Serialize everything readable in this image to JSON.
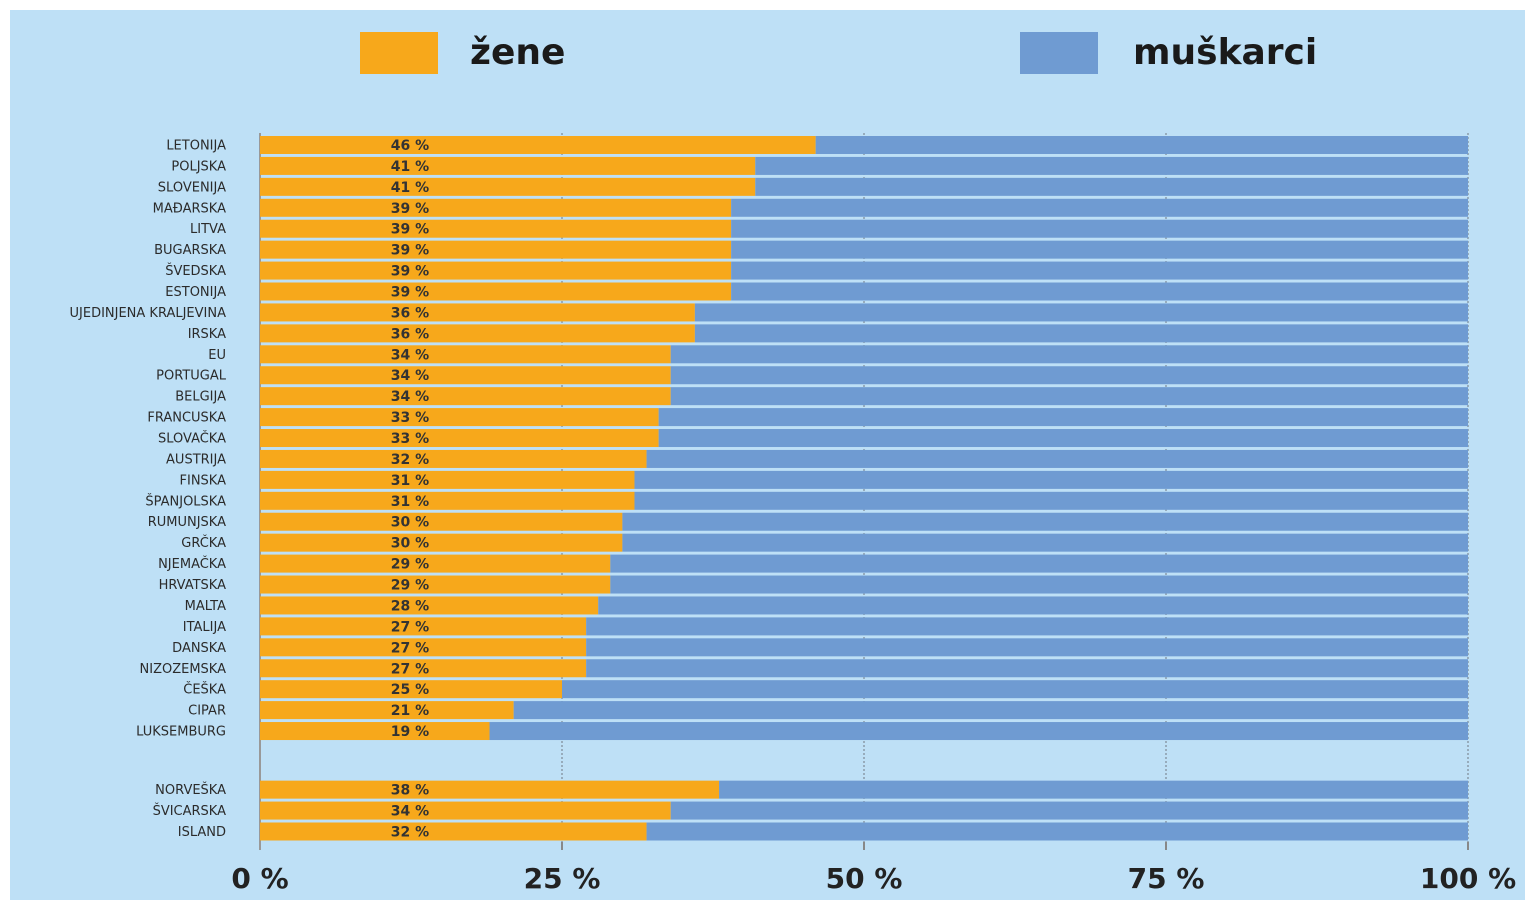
{
  "chart_data": {
    "type": "stacked_barh",
    "categories": [
      "LETONIJA",
      "POLJSKA",
      "SLOVENIJA",
      "MAĐARSKA",
      "LITVA",
      "BUGARSKA",
      "ŠVEDSKA",
      "ESTONIJA",
      "UJEDINJENA KRALJEVINA",
      "IRSKA",
      "EU",
      "PORTUGAL",
      "BELGIJA",
      "FRANCUSKA",
      "SLOVAČKA",
      "AUSTRIJA",
      "FINSKA",
      "ŠPANJOLSKA",
      "RUMUNJSKA",
      "GRČKA",
      "NJEMAČKA",
      "HRVATSKA",
      "MALTA",
      "ITALIJA",
      "DANSKA",
      "NIZOZEMSKA",
      "ČEŠKA",
      "CIPAR",
      "LUKSEMBURG",
      null,
      "NORVEŠKA",
      "ŠVICARSKA",
      "ISLAND"
    ],
    "series": [
      {
        "name": "žene",
        "color": "#f7a81b",
        "values": [
          46,
          41,
          41,
          39,
          39,
          39,
          39,
          39,
          36,
          36,
          34,
          34,
          34,
          33,
          33,
          32,
          31,
          31,
          30,
          30,
          29,
          29,
          28,
          27,
          27,
          27,
          25,
          21,
          19,
          null,
          38,
          34,
          32
        ],
        "value_labels": [
          "46 %",
          "41 %",
          "41 %",
          "39 %",
          "39 %",
          "39 %",
          "39 %",
          "39 %",
          "36 %",
          "36 %",
          "34 %",
          "34 %",
          "34 %",
          "33 %",
          "33 %",
          "32 %",
          "31 %",
          "31 %",
          "30 %",
          "30 %",
          "29 %",
          "29 %",
          "28 %",
          "27 %",
          "27 %",
          "27 %",
          "25 %",
          "21 %",
          "19 %",
          null,
          "38 %",
          "34 %",
          "32 %"
        ]
      },
      {
        "name": "muškarci",
        "color": "#6f9bd2",
        "values": [
          54,
          59,
          59,
          61,
          61,
          61,
          61,
          61,
          64,
          64,
          66,
          66,
          66,
          67,
          67,
          68,
          69,
          69,
          70,
          70,
          71,
          71,
          72,
          73,
          73,
          73,
          75,
          79,
          81,
          null,
          62,
          66,
          68
        ]
      }
    ],
    "xlim": [
      0,
      100
    ],
    "xticks": [
      {
        "value": 0,
        "label": "0 %"
      },
      {
        "value": 25,
        "label": "25 %"
      },
      {
        "value": 50,
        "label": "50 %"
      },
      {
        "value": 75,
        "label": "75 %"
      },
      {
        "value": 100,
        "label": "100 %"
      }
    ],
    "grid": true
  }
}
